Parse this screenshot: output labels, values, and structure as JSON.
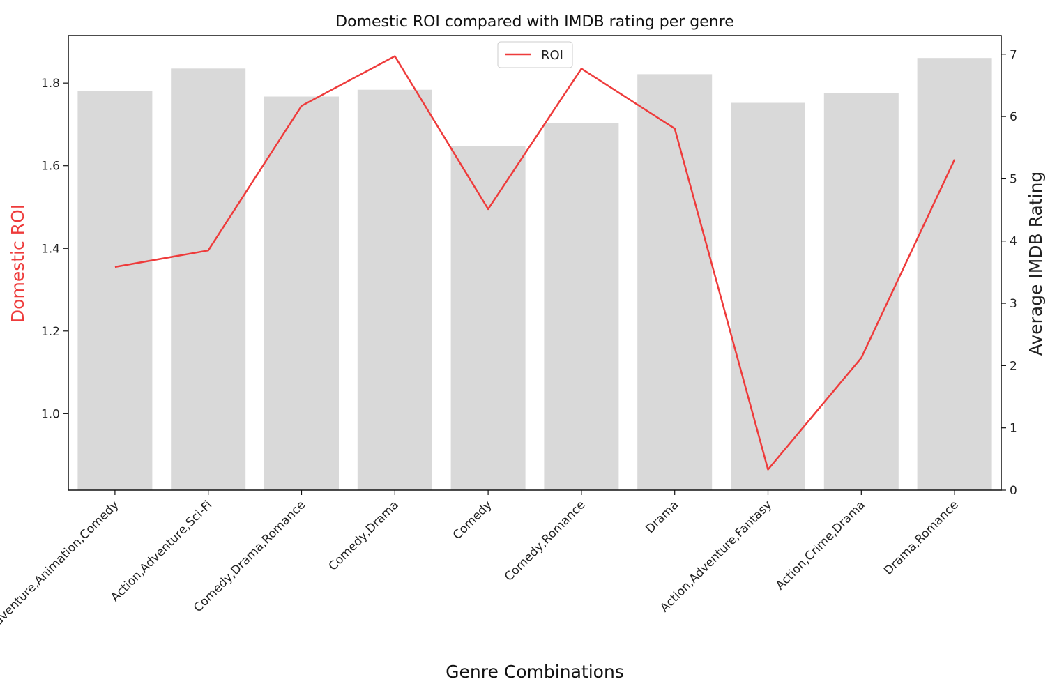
{
  "chart_data": {
    "type": "bar",
    "title": "Domestic ROI compared with IMDB rating per genre",
    "xlabel": "Genre Combinations",
    "ylabel_left": "Domestic ROI",
    "ylabel_right": "Average IMDB Rating",
    "categories": [
      "Adventure,Animation,Comedy",
      "Action,Adventure,Sci-Fi",
      "Comedy,Drama,Romance",
      "Comedy,Drama",
      "Comedy",
      "Comedy,Romance",
      "Drama",
      "Action,Adventure,Fantasy",
      "Action,Crime,Drama",
      "Drama,Romance"
    ],
    "series": [
      {
        "name": "ROI",
        "type": "line",
        "axis": "left",
        "values": [
          1.355,
          1.395,
          1.745,
          1.865,
          1.495,
          1.835,
          1.69,
          0.865,
          1.135,
          1.615
        ]
      },
      {
        "type": "bar",
        "axis": "right",
        "values": [
          6.41,
          6.77,
          6.32,
          6.43,
          5.52,
          5.89,
          6.68,
          6.22,
          6.38,
          6.94
        ]
      }
    ],
    "ylim_left": [
      0.815,
      1.915
    ],
    "ylim_right": [
      0,
      7.3
    ],
    "yticks_left": [
      "1.0",
      "1.2",
      "1.4",
      "1.6",
      "1.8"
    ],
    "yticks_right": [
      "0",
      "1",
      "2",
      "3",
      "4",
      "5",
      "6",
      "7"
    ],
    "legend": {
      "entries": [
        "ROI"
      ],
      "placement": "upper center"
    },
    "grid": false,
    "colors": {
      "line": "#ee3b3b",
      "bars": "#d9d9d9",
      "left_label": "#ee3b3b",
      "right_label": "#222222"
    }
  }
}
